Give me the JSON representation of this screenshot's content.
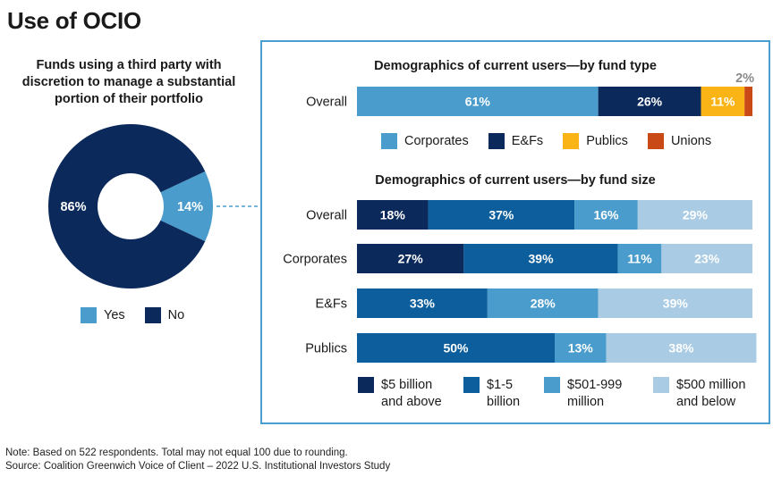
{
  "page": {
    "title": "Use of OCIO",
    "note": "Note: Based on 522 respondents. Total may not equal 100 due to rounding.",
    "source": "Source: Coalition Greenwich Voice of Client – 2022 U.S. Institutional Investors Study"
  },
  "colors": {
    "dark_navy": "#0b2a5b",
    "mid_blue": "#0c5f9c",
    "light_blue": "#4a9ccc",
    "pale_blue": "#a9cbe4",
    "gold": "#fbb415",
    "red_orange": "#c94a16",
    "border": "#4a9fd1"
  },
  "chart_data": [
    {
      "type": "pie",
      "title": "Funds using a third party with discretion to manage a substantial portion of their portfolio",
      "slices": [
        {
          "label": "Yes",
          "value": 14,
          "display": "14%"
        },
        {
          "label": "No",
          "value": 86,
          "display": "86%"
        }
      ],
      "legend": [
        "Yes",
        "No"
      ]
    },
    {
      "type": "bar",
      "orientation": "horizontal-stacked",
      "title": "Demographics of current users—by fund type",
      "categories": [
        "Overall"
      ],
      "series": [
        {
          "name": "Corporates",
          "values": [
            61
          ],
          "labels": [
            "61%"
          ]
        },
        {
          "name": "E&Fs",
          "values": [
            26
          ],
          "labels": [
            "26%"
          ]
        },
        {
          "name": "Publics",
          "values": [
            11
          ],
          "labels": [
            "11%"
          ]
        },
        {
          "name": "Unions",
          "values": [
            2
          ],
          "labels": [
            "2%"
          ]
        }
      ]
    },
    {
      "type": "bar",
      "orientation": "horizontal-stacked",
      "title": "Demographics of current users—by fund size",
      "categories": [
        "Overall",
        "Corporates",
        "E&Fs",
        "Publics"
      ],
      "series": [
        {
          "name": "$5 billion and above",
          "legend_lines": [
            "$5 billion",
            "and above"
          ],
          "values": [
            18,
            27,
            0,
            0
          ],
          "labels": [
            "18%",
            "27%",
            "",
            ""
          ]
        },
        {
          "name": "$1-5 billion",
          "legend_lines": [
            "$1-5",
            "billion"
          ],
          "values": [
            37,
            39,
            33,
            50
          ],
          "labels": [
            "37%",
            "39%",
            "33%",
            "50%"
          ]
        },
        {
          "name": "$501-999 million",
          "legend_lines": [
            "$501-999",
            "million"
          ],
          "values": [
            16,
            11,
            28,
            13
          ],
          "labels": [
            "16%",
            "11%",
            "28%",
            "13%"
          ]
        },
        {
          "name": "$500 million and below",
          "legend_lines": [
            "$500 million",
            "and below"
          ],
          "values": [
            29,
            23,
            39,
            38
          ],
          "labels": [
            "29%",
            "23%",
            "39%",
            "38%"
          ]
        }
      ]
    }
  ]
}
